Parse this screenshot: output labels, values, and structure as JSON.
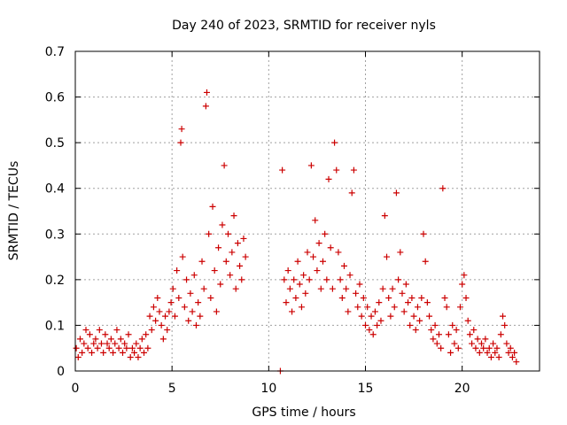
{
  "chart_data": {
    "type": "scatter",
    "title": "Day 240 of 2023, SRMTID for receiver nyls",
    "xlabel": "GPS time / hours",
    "ylabel": "SRMTID / TECUs",
    "xlim": [
      0,
      24
    ],
    "ylim": [
      0,
      0.7
    ],
    "xticks": [
      "0",
      "5",
      "10",
      "15",
      "20"
    ],
    "yticks": [
      "0",
      "0.1",
      "0.2",
      "0.3",
      "0.4",
      "0.5",
      "0.6",
      "0.7"
    ],
    "grid": true,
    "marker": "plus",
    "color": "#cc0000",
    "series": [
      {
        "name": "SRMTID",
        "points": [
          [
            0.05,
            0.05
          ],
          [
            0.15,
            0.03
          ],
          [
            0.25,
            0.07
          ],
          [
            0.35,
            0.04
          ],
          [
            0.45,
            0.06
          ],
          [
            0.55,
            0.09
          ],
          [
            0.65,
            0.05
          ],
          [
            0.75,
            0.08
          ],
          [
            0.85,
            0.04
          ],
          [
            0.95,
            0.06
          ],
          [
            1.05,
            0.07
          ],
          [
            1.15,
            0.05
          ],
          [
            1.25,
            0.09
          ],
          [
            1.35,
            0.06
          ],
          [
            1.45,
            0.04
          ],
          [
            1.55,
            0.08
          ],
          [
            1.65,
            0.06
          ],
          [
            1.75,
            0.05
          ],
          [
            1.85,
            0.07
          ],
          [
            1.95,
            0.04
          ],
          [
            2.05,
            0.06
          ],
          [
            2.15,
            0.09
          ],
          [
            2.25,
            0.05
          ],
          [
            2.35,
            0.07
          ],
          [
            2.45,
            0.04
          ],
          [
            2.55,
            0.06
          ],
          [
            2.65,
            0.05
          ],
          [
            2.75,
            0.08
          ],
          [
            2.85,
            0.03
          ],
          [
            2.95,
            0.05
          ],
          [
            3.05,
            0.04
          ],
          [
            3.15,
            0.06
          ],
          [
            3.25,
            0.03
          ],
          [
            3.35,
            0.05
          ],
          [
            3.45,
            0.07
          ],
          [
            3.55,
            0.04
          ],
          [
            3.65,
            0.08
          ],
          [
            3.75,
            0.05
          ],
          [
            3.85,
            0.12
          ],
          [
            3.95,
            0.09
          ],
          [
            4.05,
            0.14
          ],
          [
            4.15,
            0.11
          ],
          [
            4.25,
            0.16
          ],
          [
            4.35,
            0.13
          ],
          [
            4.45,
            0.1
          ],
          [
            4.55,
            0.07
          ],
          [
            4.65,
            0.12
          ],
          [
            4.75,
            0.09
          ],
          [
            4.85,
            0.13
          ],
          [
            4.95,
            0.15
          ],
          [
            5.05,
            0.18
          ],
          [
            5.15,
            0.12
          ],
          [
            5.25,
            0.22
          ],
          [
            5.35,
            0.16
          ],
          [
            5.45,
            0.5
          ],
          [
            5.5,
            0.53
          ],
          [
            5.55,
            0.25
          ],
          [
            5.65,
            0.14
          ],
          [
            5.75,
            0.2
          ],
          [
            5.85,
            0.11
          ],
          [
            5.95,
            0.17
          ],
          [
            6.05,
            0.13
          ],
          [
            6.15,
            0.21
          ],
          [
            6.25,
            0.1
          ],
          [
            6.35,
            0.15
          ],
          [
            6.45,
            0.12
          ],
          [
            6.55,
            0.24
          ],
          [
            6.65,
            0.18
          ],
          [
            6.75,
            0.58
          ],
          [
            6.8,
            0.61
          ],
          [
            6.9,
            0.3
          ],
          [
            7.0,
            0.16
          ],
          [
            7.1,
            0.36
          ],
          [
            7.2,
            0.22
          ],
          [
            7.3,
            0.13
          ],
          [
            7.4,
            0.27
          ],
          [
            7.5,
            0.19
          ],
          [
            7.6,
            0.32
          ],
          [
            7.7,
            0.45
          ],
          [
            7.8,
            0.24
          ],
          [
            7.9,
            0.3
          ],
          [
            8.0,
            0.21
          ],
          [
            8.1,
            0.26
          ],
          [
            8.2,
            0.34
          ],
          [
            8.3,
            0.18
          ],
          [
            8.4,
            0.28
          ],
          [
            8.5,
            0.23
          ],
          [
            8.6,
            0.2
          ],
          [
            8.7,
            0.29
          ],
          [
            8.8,
            0.25
          ],
          [
            10.6,
            0.0
          ],
          [
            10.7,
            0.44
          ],
          [
            10.8,
            0.2
          ],
          [
            10.9,
            0.15
          ],
          [
            11.0,
            0.22
          ],
          [
            11.1,
            0.18
          ],
          [
            11.2,
            0.13
          ],
          [
            11.3,
            0.2
          ],
          [
            11.4,
            0.16
          ],
          [
            11.5,
            0.24
          ],
          [
            11.6,
            0.19
          ],
          [
            11.7,
            0.14
          ],
          [
            11.8,
            0.21
          ],
          [
            11.9,
            0.17
          ],
          [
            12.0,
            0.26
          ],
          [
            12.1,
            0.2
          ],
          [
            12.2,
            0.45
          ],
          [
            12.3,
            0.25
          ],
          [
            12.4,
            0.33
          ],
          [
            12.5,
            0.22
          ],
          [
            12.6,
            0.28
          ],
          [
            12.7,
            0.18
          ],
          [
            12.8,
            0.24
          ],
          [
            12.9,
            0.3
          ],
          [
            13.0,
            0.2
          ],
          [
            13.1,
            0.42
          ],
          [
            13.2,
            0.27
          ],
          [
            13.3,
            0.18
          ],
          [
            13.4,
            0.5
          ],
          [
            13.5,
            0.44
          ],
          [
            13.6,
            0.26
          ],
          [
            13.7,
            0.2
          ],
          [
            13.8,
            0.16
          ],
          [
            13.9,
            0.23
          ],
          [
            14.0,
            0.18
          ],
          [
            14.1,
            0.13
          ],
          [
            14.2,
            0.21
          ],
          [
            14.3,
            0.39
          ],
          [
            14.4,
            0.44
          ],
          [
            14.5,
            0.17
          ],
          [
            14.6,
            0.14
          ],
          [
            14.7,
            0.19
          ],
          [
            14.8,
            0.12
          ],
          [
            14.9,
            0.16
          ],
          [
            15.0,
            0.1
          ],
          [
            15.1,
            0.14
          ],
          [
            15.2,
            0.09
          ],
          [
            15.3,
            0.12
          ],
          [
            15.4,
            0.08
          ],
          [
            15.5,
            0.13
          ],
          [
            15.6,
            0.1
          ],
          [
            15.7,
            0.15
          ],
          [
            15.8,
            0.11
          ],
          [
            15.9,
            0.18
          ],
          [
            16.0,
            0.34
          ],
          [
            16.1,
            0.25
          ],
          [
            16.2,
            0.16
          ],
          [
            16.3,
            0.12
          ],
          [
            16.4,
            0.18
          ],
          [
            16.5,
            0.14
          ],
          [
            16.6,
            0.39
          ],
          [
            16.7,
            0.2
          ],
          [
            16.8,
            0.26
          ],
          [
            16.9,
            0.17
          ],
          [
            17.0,
            0.13
          ],
          [
            17.1,
            0.19
          ],
          [
            17.2,
            0.15
          ],
          [
            17.3,
            0.1
          ],
          [
            17.4,
            0.16
          ],
          [
            17.5,
            0.12
          ],
          [
            17.6,
            0.09
          ],
          [
            17.7,
            0.14
          ],
          [
            17.8,
            0.11
          ],
          [
            17.9,
            0.16
          ],
          [
            18.0,
            0.3
          ],
          [
            18.1,
            0.24
          ],
          [
            18.2,
            0.15
          ],
          [
            18.3,
            0.12
          ],
          [
            18.4,
            0.09
          ],
          [
            18.5,
            0.07
          ],
          [
            18.6,
            0.1
          ],
          [
            18.7,
            0.06
          ],
          [
            18.8,
            0.08
          ],
          [
            18.9,
            0.05
          ],
          [
            19.0,
            0.4
          ],
          [
            19.1,
            0.16
          ],
          [
            19.2,
            0.14
          ],
          [
            19.3,
            0.08
          ],
          [
            19.4,
            0.04
          ],
          [
            19.5,
            0.1
          ],
          [
            19.6,
            0.06
          ],
          [
            19.7,
            0.09
          ],
          [
            19.8,
            0.05
          ],
          [
            19.9,
            0.14
          ],
          [
            20.0,
            0.19
          ],
          [
            20.1,
            0.21
          ],
          [
            20.2,
            0.16
          ],
          [
            20.3,
            0.11
          ],
          [
            20.4,
            0.08
          ],
          [
            20.5,
            0.06
          ],
          [
            20.6,
            0.09
          ],
          [
            20.7,
            0.05
          ],
          [
            20.8,
            0.07
          ],
          [
            20.9,
            0.04
          ],
          [
            21.0,
            0.06
          ],
          [
            21.1,
            0.05
          ],
          [
            21.2,
            0.07
          ],
          [
            21.3,
            0.04
          ],
          [
            21.4,
            0.05
          ],
          [
            21.5,
            0.03
          ],
          [
            21.6,
            0.06
          ],
          [
            21.7,
            0.04
          ],
          [
            21.8,
            0.05
          ],
          [
            21.9,
            0.03
          ],
          [
            22.0,
            0.08
          ],
          [
            22.1,
            0.12
          ],
          [
            22.2,
            0.1
          ],
          [
            22.3,
            0.06
          ],
          [
            22.4,
            0.04
          ],
          [
            22.5,
            0.05
          ],
          [
            22.6,
            0.03
          ],
          [
            22.7,
            0.04
          ],
          [
            22.8,
            0.02
          ]
        ]
      }
    ]
  }
}
